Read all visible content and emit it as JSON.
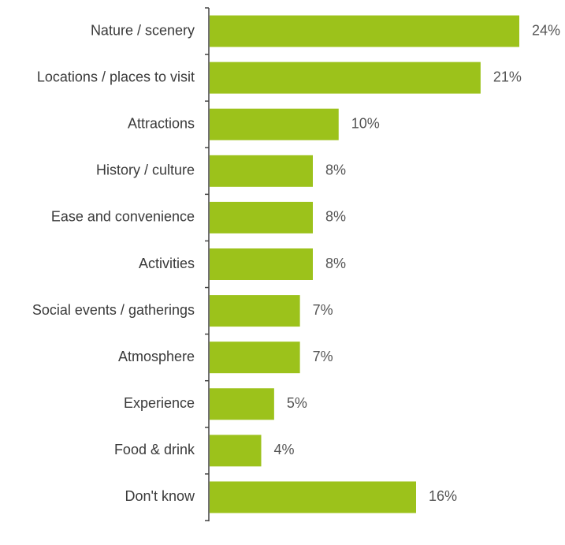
{
  "chart_data": {
    "type": "bar",
    "orientation": "horizontal",
    "categories": [
      "Nature / scenery",
      "Locations / places to visit",
      "Attractions",
      "History / culture",
      "Ease and convenience",
      "Activities",
      "Social events / gatherings",
      "Atmosphere",
      "Experience",
      "Food & drink",
      "Don't know"
    ],
    "values": [
      24,
      21,
      10,
      8,
      8,
      8,
      7,
      7,
      5,
      4,
      16
    ],
    "value_labels": [
      "24%",
      "21%",
      "10%",
      "8%",
      "8%",
      "8%",
      "7%",
      "7%",
      "5%",
      "4%",
      "16%"
    ],
    "unit": "%",
    "title": "",
    "xlabel": "",
    "ylabel": "",
    "xlim": [
      0,
      24
    ],
    "grid": false,
    "legend": "none",
    "colors": {
      "bar": "#9cc21b",
      "axis": "#444444",
      "category_text": "#3a3a3a",
      "value_text": "#555555"
    }
  }
}
